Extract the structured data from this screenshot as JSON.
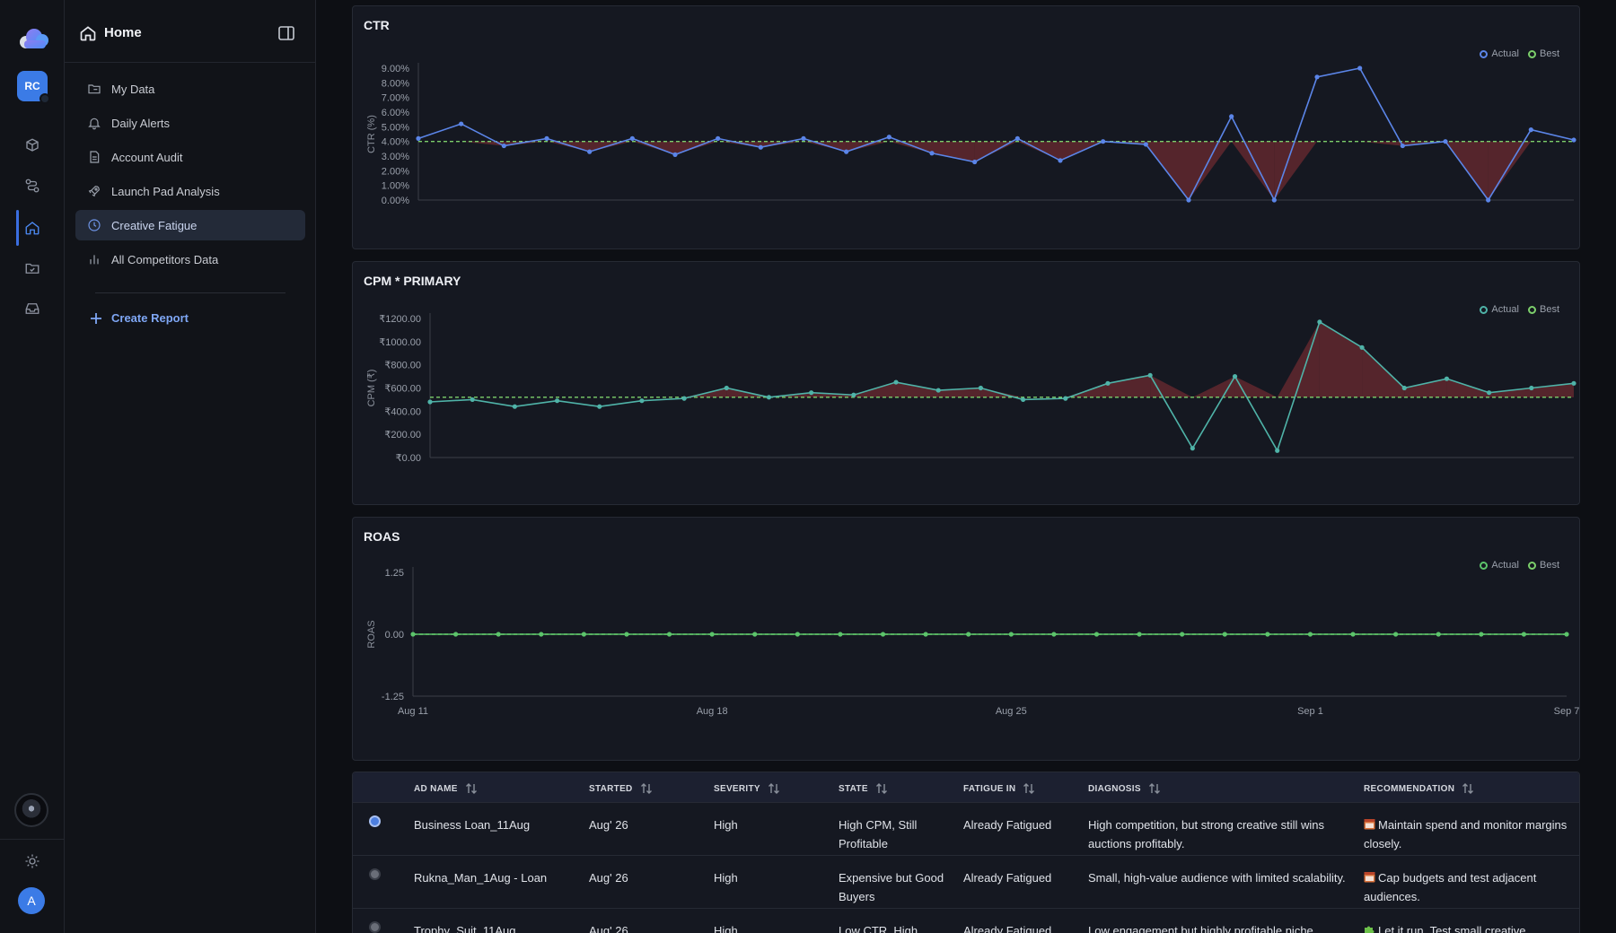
{
  "rail": {
    "avatar_initials": "RC",
    "user_initial": "A",
    "icons": [
      "cube-stack-icon",
      "route-icon",
      "home-icon",
      "folder-check-icon",
      "inbox-icon",
      "settings-sun-icon"
    ]
  },
  "sidebar": {
    "title": "Home",
    "items": [
      {
        "label": "My Data",
        "icon": "folder-icon"
      },
      {
        "label": "Daily Alerts",
        "icon": "bell-icon"
      },
      {
        "label": "Account Audit",
        "icon": "document-icon"
      },
      {
        "label": "Launch Pad Analysis",
        "icon": "rocket-icon"
      },
      {
        "label": "Creative Fatigue",
        "icon": "clock-icon",
        "active": true
      },
      {
        "label": "All Competitors Data",
        "icon": "bar-chart-icon"
      }
    ],
    "create_report": "Create Report"
  },
  "colors": {
    "accent": "#4d7fe0",
    "ctr_line": "#5b85e8",
    "cpm_line": "#4fb3a8",
    "roas_line": "#5cc46b",
    "best_line": "#7ccf6b",
    "fatigue_fill": "#6b2a30"
  },
  "chart_data": [
    {
      "type": "line",
      "title": "CTR",
      "ylabel": "CTR (%)",
      "yticks": [
        "0.00%",
        "1.00%",
        "2.00%",
        "3.00%",
        "4.00%",
        "5.00%",
        "6.00%",
        "7.00%",
        "8.00%",
        "9.00%"
      ],
      "ylim": [
        0,
        9
      ],
      "best": 4.0,
      "legend": [
        "Actual",
        "Best"
      ],
      "series": [
        {
          "name": "Actual",
          "values": [
            4.2,
            5.2,
            3.7,
            4.2,
            3.3,
            4.2,
            3.1,
            4.2,
            3.6,
            4.2,
            3.3,
            4.3,
            3.2,
            2.6,
            4.2,
            2.7,
            4.0,
            3.8,
            0.0,
            5.7,
            0.0,
            8.4,
            9.0,
            3.7,
            4.0,
            0.0,
            4.8,
            4.1
          ]
        }
      ]
    },
    {
      "type": "line",
      "title": "CPM * PRIMARY",
      "ylabel": "CPM (₹)",
      "yticks": [
        "₹0.00",
        "₹200.00",
        "₹400.00",
        "₹600.00",
        "₹800.00",
        "₹1000.00",
        "₹1200.00"
      ],
      "ylim": [
        0,
        1200
      ],
      "best": 520,
      "legend": [
        "Actual",
        "Best"
      ],
      "series": [
        {
          "name": "Actual",
          "values": [
            480,
            500,
            440,
            490,
            440,
            490,
            510,
            600,
            520,
            560,
            540,
            650,
            580,
            600,
            500,
            510,
            640,
            710,
            80,
            700,
            60,
            1170,
            950,
            600,
            680,
            560,
            600,
            640
          ]
        }
      ]
    },
    {
      "type": "line",
      "title": "ROAS",
      "ylabel": "ROAS",
      "yticks": [
        "-1.25",
        "0.00",
        "1.25"
      ],
      "ylim": [
        -1.25,
        1.25
      ],
      "best": 0,
      "legend": [
        "Actual",
        "Best"
      ],
      "x_ticks": [
        "Aug 11",
        "Aug 18",
        "Aug 25",
        "Sep 1",
        "Sep 7"
      ],
      "series": [
        {
          "name": "Actual",
          "values": [
            0,
            0,
            0,
            0,
            0,
            0,
            0,
            0,
            0,
            0,
            0,
            0,
            0,
            0,
            0,
            0,
            0,
            0,
            0,
            0,
            0,
            0,
            0,
            0,
            0,
            0,
            0,
            0
          ]
        }
      ]
    }
  ],
  "table": {
    "columns": [
      "AD NAME",
      "STARTED",
      "SEVERITY",
      "STATE",
      "FATIGUE IN",
      "DIAGNOSIS",
      "RECOMMENDATION"
    ],
    "rows": [
      {
        "selected": true,
        "ad_name": "Business Loan_11Aug",
        "started": "Aug' 26",
        "severity": "High",
        "state": "High CPM, Still Profitable",
        "fatigue_in": "Already Fatigued",
        "diagnosis": "High competition, but strong creative still wins auctions profitably.",
        "rec_icon": "calendar-icon",
        "recommendation": "Maintain spend and monitor margins closely."
      },
      {
        "selected": false,
        "ad_name": "Rukna_Man_1Aug - Loan",
        "started": "Aug' 26",
        "severity": "High",
        "state": "Expensive but Good Buyers",
        "fatigue_in": "Already Fatigued",
        "diagnosis": "Small, high-value audience with limited scalability.",
        "rec_icon": "calendar-icon",
        "recommendation": "Cap budgets and test adjacent audiences."
      },
      {
        "selected": false,
        "ad_name": "Trophy_Suit_11Aug",
        "started": "Aug' 26",
        "severity": "High",
        "state": "Low CTR, High",
        "fatigue_in": "Already Fatigued",
        "diagnosis": "Low engagement but highly profitable niche",
        "rec_icon": "puzzle-icon",
        "recommendation": "Let it run. Test small creative"
      }
    ]
  }
}
